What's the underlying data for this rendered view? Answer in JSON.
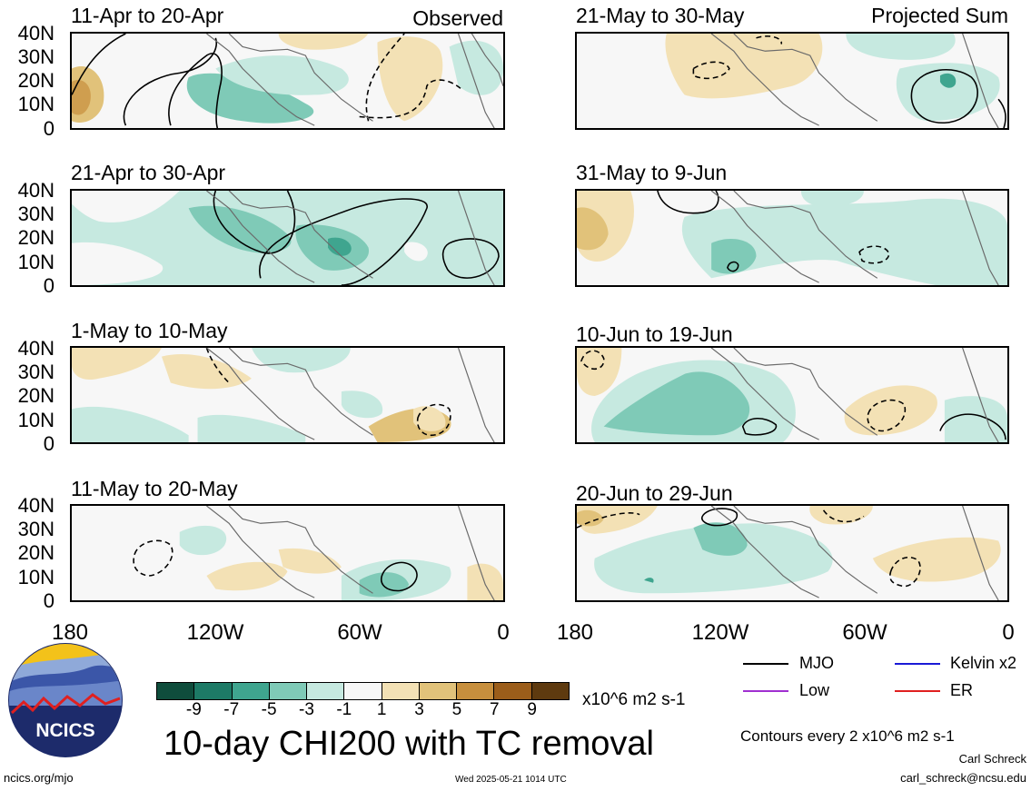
{
  "panels": [
    {
      "id": "p1",
      "title": "11-Apr to 20-Apr",
      "tag": "Observed"
    },
    {
      "id": "p2",
      "title": "21-Apr to 30-Apr",
      "tag": ""
    },
    {
      "id": "p3",
      "title": "1-May to 10-May",
      "tag": ""
    },
    {
      "id": "p4",
      "title": "11-May to 20-May",
      "tag": ""
    },
    {
      "id": "p5",
      "title": "21-May to 30-May",
      "tag": "Projected Sum"
    },
    {
      "id": "p6",
      "title": "31-May to 9-Jun",
      "tag": ""
    },
    {
      "id": "p7",
      "title": "10-Jun to 19-Jun",
      "tag": ""
    },
    {
      "id": "p8",
      "title": "20-Jun to 29-Jun",
      "tag": ""
    }
  ],
  "y_ticks": [
    "40N",
    "30N",
    "20N",
    "10N",
    "0"
  ],
  "x_ticks": [
    "180",
    "120W",
    "60W",
    "0"
  ],
  "colorbar": {
    "colors": [
      "#0f4d3c",
      "#1d7a66",
      "#3fa58f",
      "#7fcab7",
      "#c6e9e0",
      "#f7f7f7",
      "#f3e1b5",
      "#e1c27a",
      "#c78f3d",
      "#9b5d1a",
      "#5e3a0f"
    ],
    "ticks": [
      "-9",
      "-7",
      "-5",
      "-3",
      "-1",
      "1",
      "3",
      "5",
      "7",
      "9"
    ],
    "units": "x10^6 m2 s-1"
  },
  "legend": {
    "items": [
      {
        "label": "MJO",
        "color": "#000000"
      },
      {
        "label": "Kelvin x2",
        "color": "#1a1ad6"
      },
      {
        "label": "Low",
        "color": "#a030d0"
      },
      {
        "label": "ER",
        "color": "#e02020"
      }
    ],
    "contours_note": "Contours every 2 x10^6 m2 s-1"
  },
  "main_title": "10-day CHI200 with TC removal",
  "logo_text": "NCICS",
  "footer": {
    "url": "ncics.org/mjo",
    "timestamp": "Wed 2025-05-21 1014 UTC",
    "author": "Carl Schreck",
    "email": "carl_schreck@ncsu.edu"
  }
}
